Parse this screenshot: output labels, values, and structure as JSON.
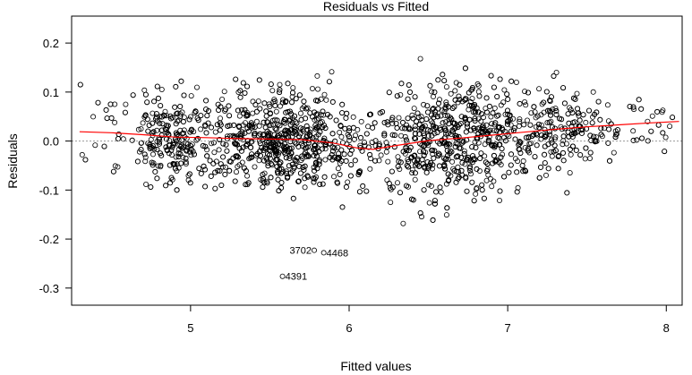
{
  "chart_data": {
    "type": "scatter",
    "title": "Residuals vs Fitted",
    "xlabel": "Fitted values",
    "ylabel": "Residuals",
    "xlim": [
      4.25,
      8.1
    ],
    "ylim": [
      -0.335,
      0.255
    ],
    "xticks": [
      "5",
      "6",
      "7",
      "8"
    ],
    "yticks": [
      "-0.3",
      "-0.2",
      "-0.1",
      "0.0",
      "0.1",
      "0.2"
    ],
    "reference_line_y": 0.0,
    "point_color": "#000000",
    "smooth_color": "#ff0000",
    "reference_color": "#999999",
    "grid": false,
    "smooth_line": {
      "x": [
        4.3,
        4.5,
        4.7,
        4.9,
        5.1,
        5.3,
        5.5,
        5.7,
        5.9,
        6.05,
        6.15,
        6.3,
        6.5,
        6.7,
        6.9,
        7.1,
        7.3,
        7.5,
        7.7,
        7.9,
        8.08
      ],
      "y": [
        0.019,
        0.017,
        0.013,
        0.008,
        0.007,
        0.005,
        0.004,
        0.003,
        -0.004,
        -0.014,
        -0.017,
        -0.009,
        0.001,
        0.006,
        0.012,
        0.018,
        0.024,
        0.029,
        0.033,
        0.037,
        0.04
      ]
    },
    "labeled_points": [
      {
        "label": "3702",
        "x": 5.78,
        "y": -0.223
      },
      {
        "label": "4468",
        "x": 5.84,
        "y": -0.228
      },
      {
        "label": "4391",
        "x": 5.58,
        "y": -0.276
      }
    ]
  }
}
